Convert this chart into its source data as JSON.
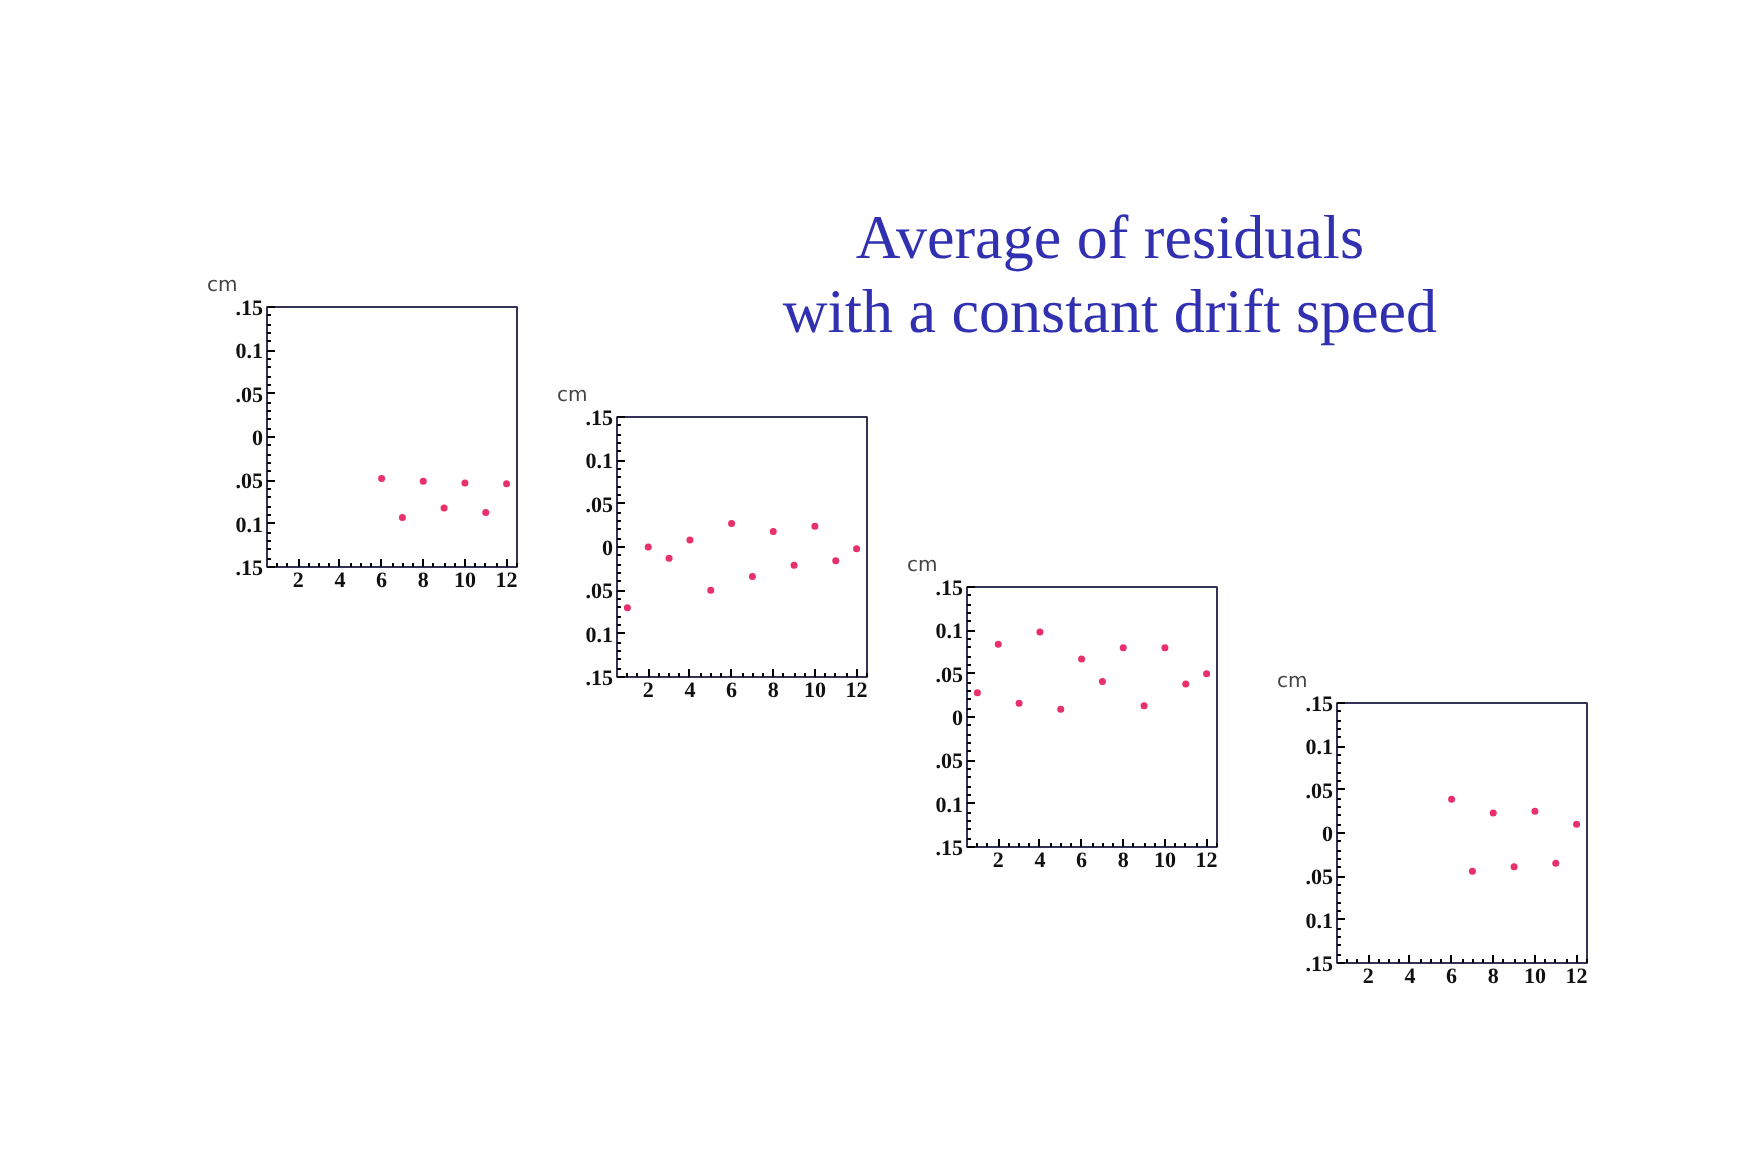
{
  "chart_data": [
    {
      "type": "scatter",
      "ylabel": "cm",
      "marker": "circle",
      "grid": false,
      "xlim": [
        0.5,
        12.5
      ],
      "xticks": [
        2,
        4,
        6,
        8,
        10,
        12
      ],
      "ylim": [
        -0.15,
        0.15
      ],
      "yticks": [
        {
          "value": -0.15,
          "label": ".15"
        },
        {
          "value": -0.1,
          "label": "0.1"
        },
        {
          "value": -0.05,
          "label": ".05"
        },
        0,
        {
          "value": 0.05,
          "label": ".05"
        },
        {
          "value": 0.1,
          "label": "0.1"
        },
        {
          "value": 0.15,
          "label": ".15"
        }
      ],
      "x": [
        6,
        7,
        8,
        9,
        10,
        11,
        12
      ],
      "series": [
        {
          "color": "#e8306a",
          "values": [
            -0.048,
            -0.093,
            -0.051,
            -0.082,
            -0.053,
            -0.087,
            -0.054
          ]
        }
      ]
    },
    {
      "type": "scatter",
      "ylabel": "cm",
      "marker": "circle",
      "grid": false,
      "xlim": [
        0.5,
        12.5
      ],
      "xticks": [
        2,
        4,
        6,
        8,
        10,
        12
      ],
      "ylim": [
        -0.15,
        0.15
      ],
      "yticks": [
        {
          "value": -0.15,
          "label": ".15"
        },
        {
          "value": -0.1,
          "label": "0.1"
        },
        {
          "value": -0.05,
          "label": ".05"
        },
        0,
        {
          "value": 0.05,
          "label": ".05"
        },
        {
          "value": 0.1,
          "label": "0.1"
        },
        {
          "value": 0.15,
          "label": ".15"
        }
      ],
      "x": [
        1,
        2,
        3,
        4,
        5,
        6,
        7,
        8,
        9,
        10,
        11,
        12
      ],
      "series": [
        {
          "color": "#e8306a",
          "values": [
            -0.07,
            0.0,
            -0.013,
            0.008,
            -0.05,
            0.027,
            -0.034,
            0.018,
            -0.021,
            0.024,
            -0.016,
            -0.002
          ]
        }
      ]
    },
    {
      "type": "scatter",
      "ylabel": "cm",
      "marker": "circle",
      "grid": false,
      "xlim": [
        0.5,
        12.5
      ],
      "xticks": [
        2,
        4,
        6,
        8,
        10,
        12
      ],
      "ylim": [
        -0.15,
        0.15
      ],
      "yticks": [
        {
          "value": -0.15,
          "label": ".15"
        },
        {
          "value": -0.1,
          "label": "0.1"
        },
        {
          "value": -0.05,
          "label": ".05"
        },
        0,
        {
          "value": 0.05,
          "label": ".05"
        },
        {
          "value": 0.1,
          "label": "0.1"
        },
        {
          "value": 0.15,
          "label": ".15"
        }
      ],
      "title": "Average of residuals\nwith a constant drift speed",
      "x": [
        1,
        2,
        3,
        4,
        5,
        6,
        7,
        8,
        9,
        10,
        11,
        12
      ],
      "series": [
        {
          "color": "#e8306a",
          "values": [
            0.028,
            0.084,
            0.016,
            0.098,
            0.009,
            0.067,
            0.041,
            0.08,
            0.013,
            0.08,
            0.038,
            0.05
          ]
        }
      ]
    },
    {
      "type": "scatter",
      "ylabel": "cm",
      "marker": "circle",
      "grid": false,
      "xlim": [
        0.5,
        12.5
      ],
      "xticks": [
        2,
        4,
        6,
        8,
        10,
        12
      ],
      "ylim": [
        -0.15,
        0.15
      ],
      "yticks": [
        {
          "value": -0.15,
          "label": ".15"
        },
        {
          "value": -0.1,
          "label": "0.1"
        },
        {
          "value": -0.05,
          "label": ".05"
        },
        0,
        {
          "value": 0.05,
          "label": ".05"
        },
        {
          "value": 0.1,
          "label": "0.1"
        },
        {
          "value": 0.15,
          "label": ".15"
        }
      ],
      "x": [
        6,
        7,
        8,
        9,
        10,
        11,
        12
      ],
      "series": [
        {
          "color": "#e8306a",
          "values": [
            0.039,
            -0.044,
            0.023,
            -0.039,
            0.025,
            -0.035,
            0.01
          ]
        }
      ]
    }
  ]
}
